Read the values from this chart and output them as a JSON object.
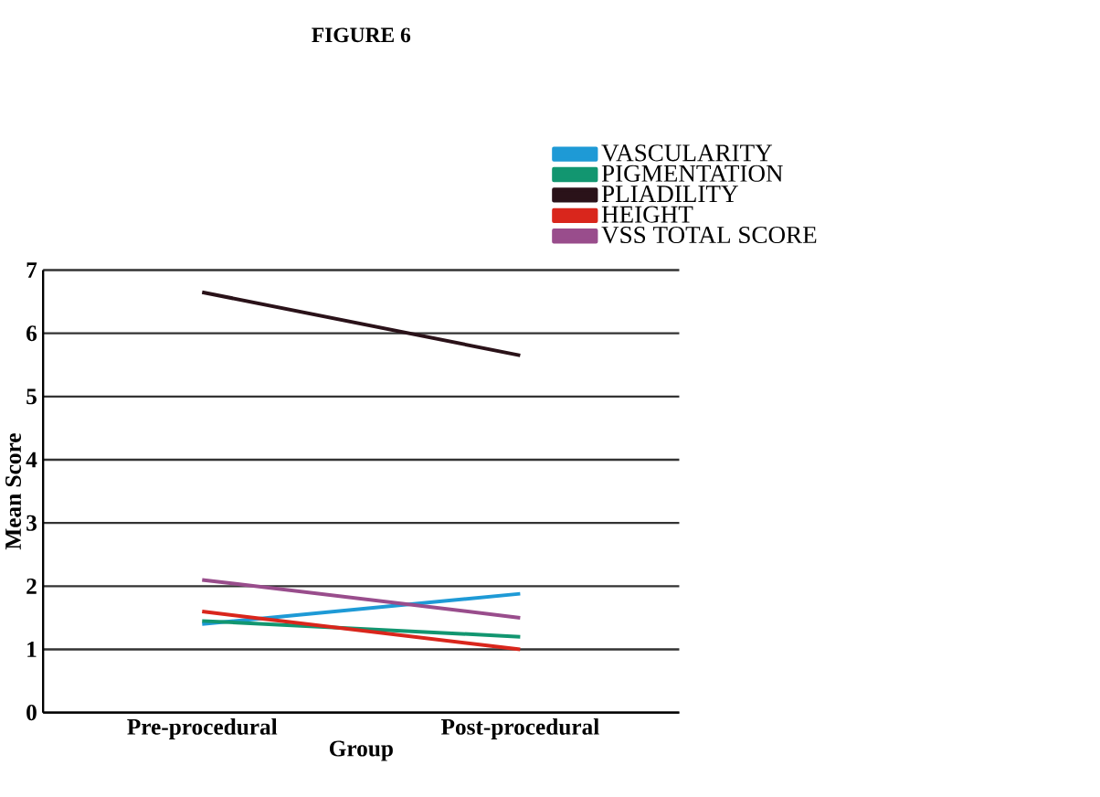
{
  "chart_data": {
    "type": "line",
    "title": "FIGURE 6",
    "xlabel": "Group",
    "ylabel": "Mean Score",
    "categories": [
      "Pre-procedural",
      "Post-procedural"
    ],
    "series": [
      {
        "name": "VASCULARITY",
        "color": "#1e9ad6",
        "values": [
          1.4,
          1.88
        ]
      },
      {
        "name": "PIGMENTATION",
        "color": "#129670",
        "values": [
          1.45,
          1.2
        ]
      },
      {
        "name": "PLIADILITY",
        "color": "#2a1219",
        "values": [
          6.65,
          5.65
        ]
      },
      {
        "name": "HEIGHT",
        "color": "#d9261c",
        "values": [
          1.6,
          1.0
        ]
      },
      {
        "name": "VSS TOTAL SCORE",
        "color": "#994d8c",
        "values": [
          2.1,
          1.5
        ]
      }
    ],
    "ylim": [
      0,
      7
    ],
    "yticks": [
      0,
      1,
      2,
      3,
      4,
      5,
      6,
      7
    ],
    "grid": "y",
    "legend": "top right"
  }
}
